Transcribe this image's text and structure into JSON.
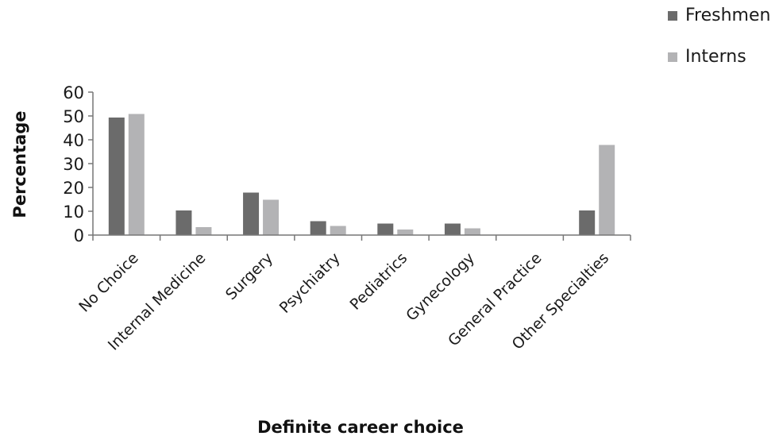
{
  "chart_data": {
    "type": "bar",
    "title": "",
    "xlabel": "Definite career choice",
    "ylabel": "Percentage",
    "ylim": [
      0,
      60
    ],
    "yticks": [
      0,
      10,
      20,
      30,
      40,
      50,
      60
    ],
    "grid": false,
    "legend_position": "top-right",
    "categories": [
      "No Choice",
      "Internal Medicine",
      "Surgery",
      "Psychiatry",
      "Pediatrics",
      "Gynecology",
      "General Practice",
      "Other Specialties"
    ],
    "series": [
      {
        "name": "Freshmen",
        "color": "#6b6b6b",
        "values": [
          49.5,
          10.5,
          18,
          6,
          5,
          5,
          0,
          10.5
        ]
      },
      {
        "name": "Interns",
        "color": "#b3b3b5",
        "values": [
          51,
          3.5,
          15,
          4,
          2.5,
          3,
          0,
          38
        ]
      }
    ]
  }
}
